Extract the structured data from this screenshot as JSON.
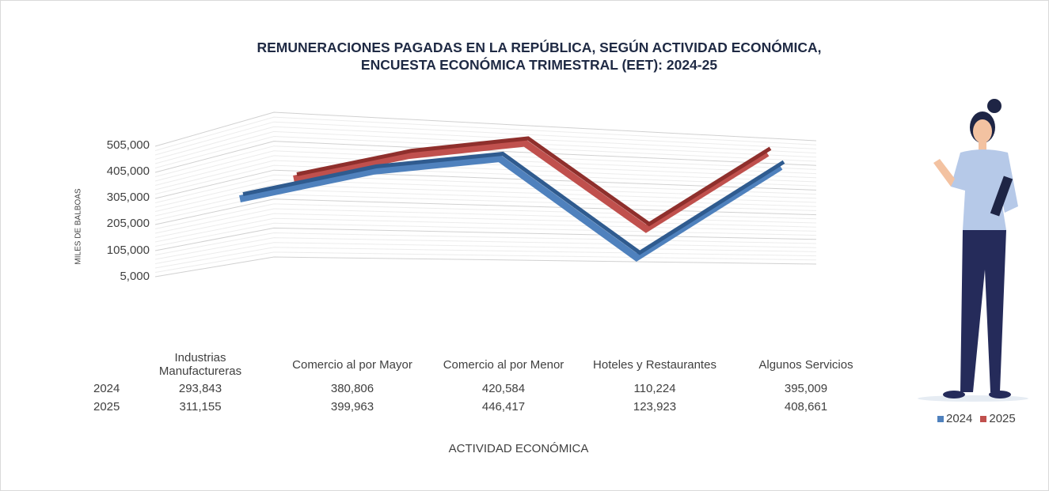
{
  "chart_data": {
    "type": "line",
    "subtype": "3d-line",
    "title": "REMUNERACIONES  PAGADAS EN LA REPÚBLICA, SEGÚN ACTIVIDAD ECONÓMICA,",
    "subtitle": "ENCUESTA ECONÓMICA TRIMESTRAL (EET):  2024-25",
    "xlabel": "ACTIVIDAD ECONÓMICA",
    "ylabel": "MILES DE BALBOAS",
    "yticks": [
      "505,000",
      "405,000",
      "305,000",
      "205,000",
      "105,000",
      "5,000"
    ],
    "ylim": [
      5000,
      505000
    ],
    "grid": true,
    "legend": "bottom-right",
    "categories": [
      [
        "Industrias",
        "Manufactureras"
      ],
      "Comercio al por Mayor",
      "Comercio al por Menor",
      "Hoteles y Restaurantes",
      "Algunos Servicios"
    ],
    "series": [
      {
        "name": "2024",
        "color": "#4f81bd",
        "values": [
          293843,
          380806,
          420584,
          110224,
          395009
        ],
        "labels": [
          "293,843",
          "380,806",
          "420,584",
          "110,224",
          "395,009"
        ]
      },
      {
        "name": "2025",
        "color": "#c0504d",
        "values": [
          311155,
          399963,
          446417,
          123923,
          408661
        ],
        "labels": [
          "311,155",
          "399,963",
          "446,417",
          "123,923",
          "408,661"
        ]
      }
    ]
  }
}
